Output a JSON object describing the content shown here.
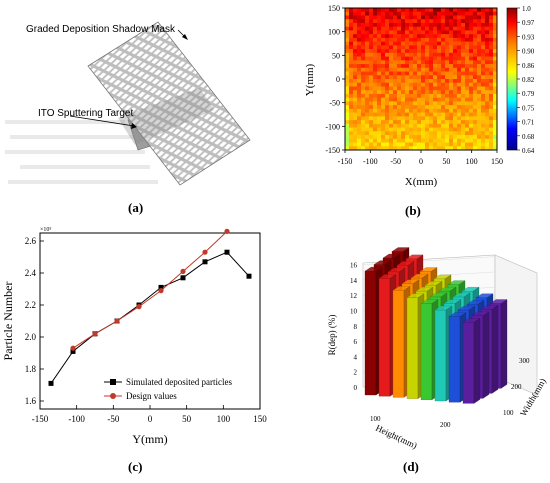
{
  "panels": {
    "a": {
      "label": "(a)",
      "mask_label": "Graded Deposition Shadow Mask",
      "target_label": "ITO Sputtering Target"
    },
    "b": {
      "label": "(b)",
      "chart_ref": "heatmap"
    },
    "c": {
      "label": "(c)"
    },
    "d": {
      "label": "(d)"
    }
  },
  "chart_data": [
    {
      "id": "heatmap",
      "type": "heatmap",
      "xlabel": "X(mm)",
      "ylabel": "Y(mm)",
      "xlim": [
        -150,
        150
      ],
      "ylim": [
        -150,
        150
      ],
      "xticks": [
        "-150",
        "-100",
        "-50",
        "0",
        "50",
        "100",
        "150"
      ],
      "yticks": [
        "-150",
        "-100",
        "-50",
        "0",
        "50",
        "100",
        "150"
      ],
      "colorbar_ticks": [
        "1.0",
        "0.97",
        "0.93",
        "0.90",
        "0.86",
        "0.82",
        "0.79",
        "0.75",
        "0.71",
        "0.68",
        "0.64"
      ],
      "colorbar_range": [
        0.64,
        1.0
      ],
      "trend": "values near 0.93-1.0 at top, decreasing to about 0.82-0.86 toward bottom"
    },
    {
      "id": "particles",
      "type": "line",
      "xlabel": "Y(mm)",
      "ylabel": "Particle Number",
      "y_multiplier": "×10⁵",
      "xlim": [
        -150,
        150
      ],
      "ylim": [
        1.55,
        2.65
      ],
      "xticks": [
        -150,
        -100,
        -50,
        0,
        50,
        100,
        150
      ],
      "yticks": [
        1.6,
        1.8,
        2.0,
        2.2,
        2.4,
        2.6
      ],
      "legend_position": "bottom-right",
      "series": [
        {
          "name": "Simulated deposited particles",
          "color": "#000000",
          "marker": "square",
          "x": [
            -135,
            -105,
            -75,
            -45,
            -15,
            15,
            45,
            75,
            105,
            135
          ],
          "y": [
            1.71,
            1.91,
            2.02,
            2.1,
            2.2,
            2.31,
            2.37,
            2.47,
            2.53,
            2.38
          ]
        },
        {
          "name": "Design values",
          "color": "#c0392b",
          "marker": "circle",
          "x": [
            -105,
            -75,
            -45,
            -15,
            15,
            45,
            75,
            105
          ],
          "y": [
            1.93,
            2.02,
            2.1,
            2.19,
            2.29,
            2.41,
            2.53,
            2.66
          ]
        }
      ]
    },
    {
      "id": "bars3d",
      "type": "bar",
      "xlabel": "Height(mm)",
      "ylabel": "Width(mm)",
      "zlabel": "R(dep) (%)",
      "zticks": [
        0,
        2,
        4,
        6,
        8,
        10,
        12,
        14,
        16
      ],
      "xticks": [
        "100",
        "200"
      ],
      "yticks": [
        "100",
        "200",
        "300"
      ],
      "columns": [
        {
          "color": "#8b0000",
          "values": [
            16.2,
            16.4,
            16.6,
            16.8
          ]
        },
        {
          "color": "#e41a1c",
          "values": [
            15.4,
            15.6,
            15.8,
            16.0
          ]
        },
        {
          "color": "#ff8c00",
          "values": [
            14.0,
            14.2,
            14.3,
            14.5
          ]
        },
        {
          "color": "#c8d400",
          "values": [
            13.2,
            13.4,
            13.5,
            13.7
          ]
        },
        {
          "color": "#39c832",
          "values": [
            12.6,
            12.8,
            12.9,
            13.1
          ]
        },
        {
          "color": "#20c9b6",
          "values": [
            11.9,
            12.1,
            12.3,
            12.4
          ]
        },
        {
          "color": "#1e4fd8",
          "values": [
            11.2,
            11.4,
            11.5,
            11.7
          ]
        },
        {
          "color": "#5b1e9e",
          "values": [
            10.6,
            10.8,
            11.0,
            11.1
          ]
        }
      ]
    }
  ]
}
